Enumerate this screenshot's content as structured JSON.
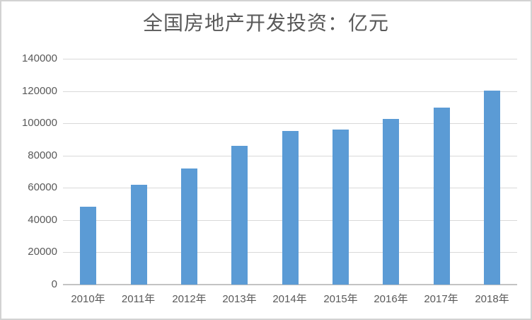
{
  "chart_data": {
    "type": "bar",
    "title": "全国房地产开发投资：亿元",
    "categories": [
      "2010年",
      "2011年",
      "2012年",
      "2013年",
      "2014年",
      "2015年",
      "2016年",
      "2017年",
      "2018年"
    ],
    "values": [
      48267,
      61740,
      71804,
      86013,
      95036,
      95979,
      102581,
      109799,
      120264
    ],
    "xlabel": "",
    "ylabel": "",
    "ylim": [
      0,
      140000
    ],
    "ytick_interval": 20000,
    "yticks": [
      "140000",
      "120000",
      "100000",
      "80000",
      "60000",
      "40000",
      "20000",
      "0"
    ],
    "grid": "horizontal",
    "legend_position": "none",
    "series_name": ""
  },
  "colors": {
    "bar": "#5b9bd5",
    "gridline": "#d9d9d9",
    "axis_line": "#c3c3c3",
    "text": "#595959",
    "frame_border": "#d2d2d2",
    "background": "#ffffff"
  }
}
